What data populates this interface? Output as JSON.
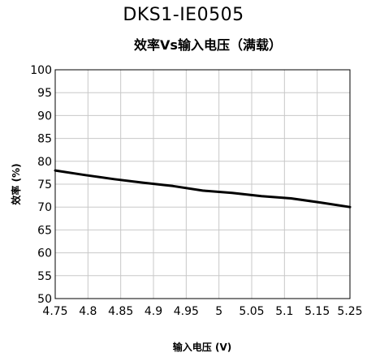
{
  "chart_data": {
    "type": "line",
    "title": "DKS1-IE0505",
    "subtitle": "效率Vs输入电压（满载）",
    "xlabel": "输入电压 (V)",
    "ylabel": "效率 (%)",
    "xlim": [
      4.75,
      5.25
    ],
    "ylim": [
      50,
      100
    ],
    "grid": true,
    "x_ticks": [
      "4.75",
      "4.8",
      "4.85",
      "4.9",
      "4.95",
      "5",
      "5.05",
      "5.1",
      "5.15",
      "5.25"
    ],
    "y_ticks": [
      "50",
      "55",
      "60",
      "65",
      "70",
      "75",
      "80",
      "85",
      "90",
      "95",
      "100"
    ],
    "series": [
      {
        "x": [
          4.75,
          4.8,
          4.85,
          4.9,
          4.95,
          5.0,
          5.05,
          5.1,
          5.15,
          5.2,
          5.25
        ],
        "y": [
          78.0,
          77.0,
          76.1,
          75.3,
          74.6,
          73.6,
          73.1,
          72.4,
          71.9,
          71.0,
          70.0
        ]
      }
    ]
  }
}
